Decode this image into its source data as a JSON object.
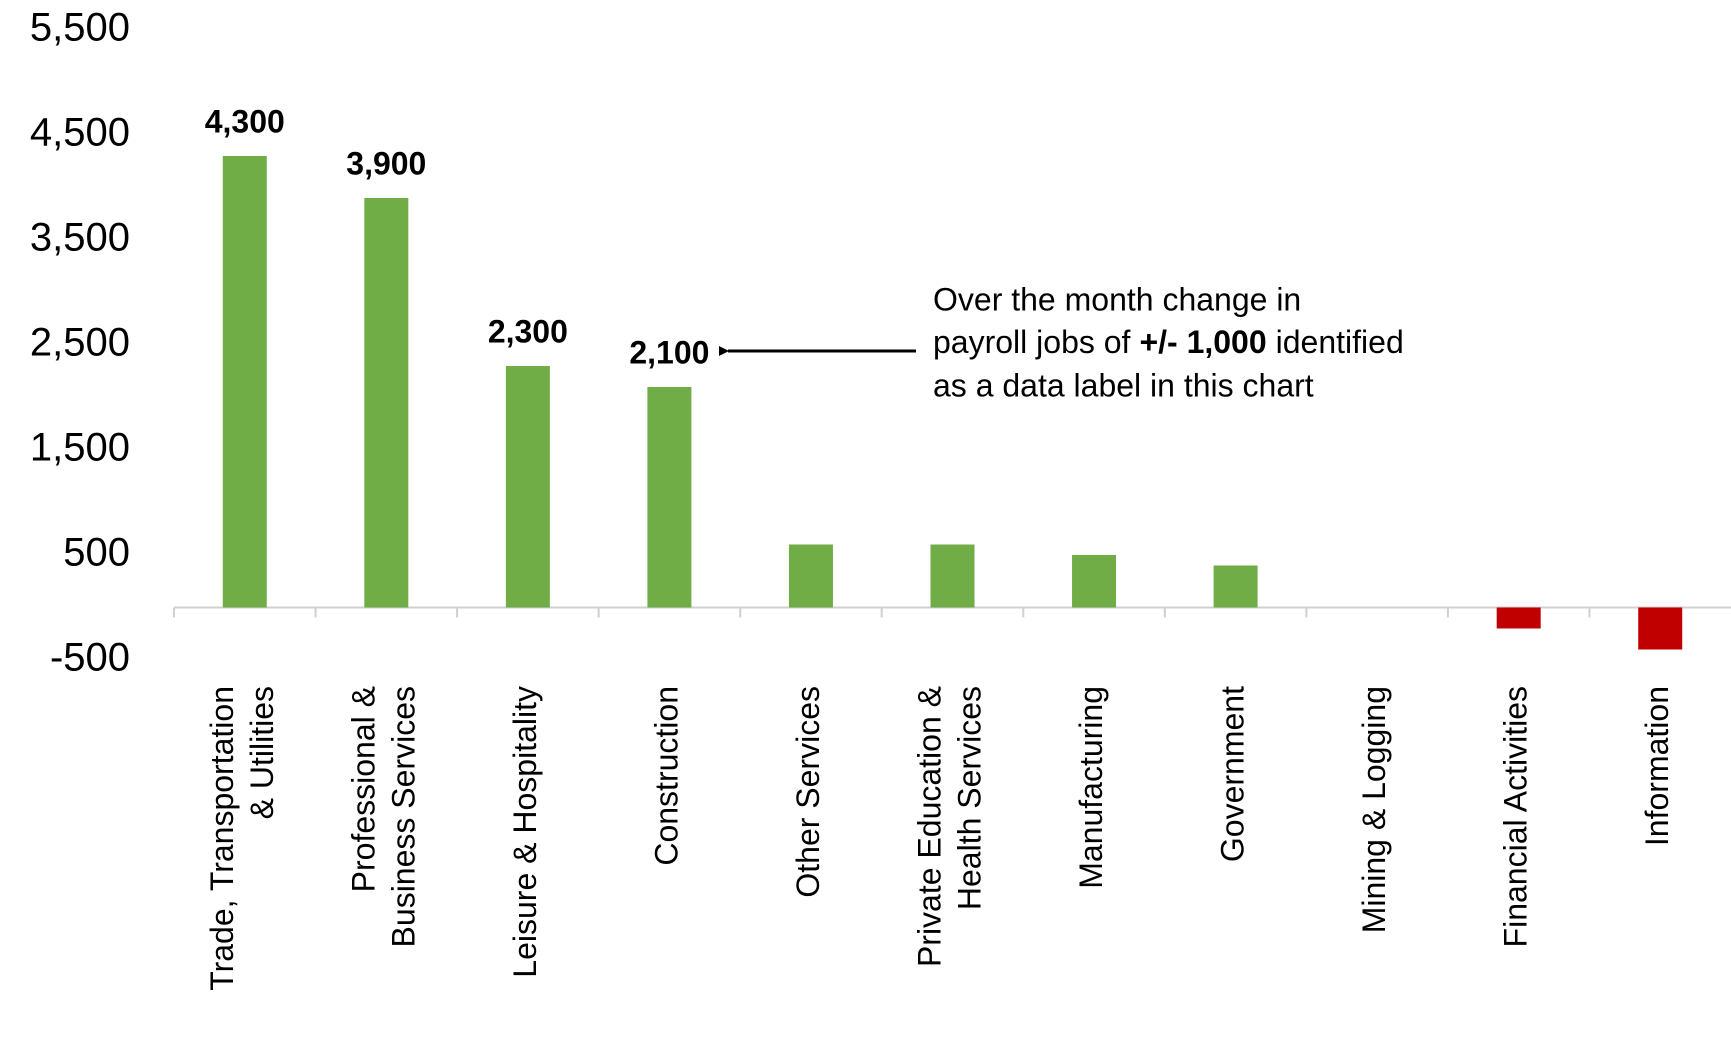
{
  "chart_data": {
    "type": "bar",
    "categories": [
      "Trade, Transportation\n& Utilities",
      "Professional &\nBusiness Services",
      "Leisure & Hospitality",
      "Construction",
      "Other Services",
      "Private Education &\nHealth Services",
      "Manufacturing",
      "Government",
      "Mining & Logging",
      "Financial Activities",
      "Information"
    ],
    "values": [
      4300,
      3900,
      2300,
      2100,
      600,
      600,
      500,
      400,
      0,
      -200,
      -400
    ],
    "value_labels": [
      "4,300",
      "3,900",
      "2,300",
      "2,100",
      null,
      null,
      null,
      null,
      null,
      null,
      null
    ],
    "colors": {
      "positive": "#70ad47",
      "negative": "#c00000"
    },
    "ylim": [
      -500,
      5500
    ],
    "yticks": [
      -500,
      500,
      {
        "value": 1500,
        "label": "1,500"
      },
      {
        "value": 2500,
        "label": "2,500"
      },
      {
        "value": 3500,
        "label": "3,500"
      },
      {
        "value": 4500,
        "label": "4,500"
      },
      {
        "value": 5500,
        "label": "5,500"
      }
    ],
    "grid": false,
    "annotation": {
      "line1": "Over the month change in",
      "line2": [
        "payroll jobs of",
        "+/- 1,000",
        "identified"
      ],
      "line3": "as a data label in this chart"
    }
  }
}
